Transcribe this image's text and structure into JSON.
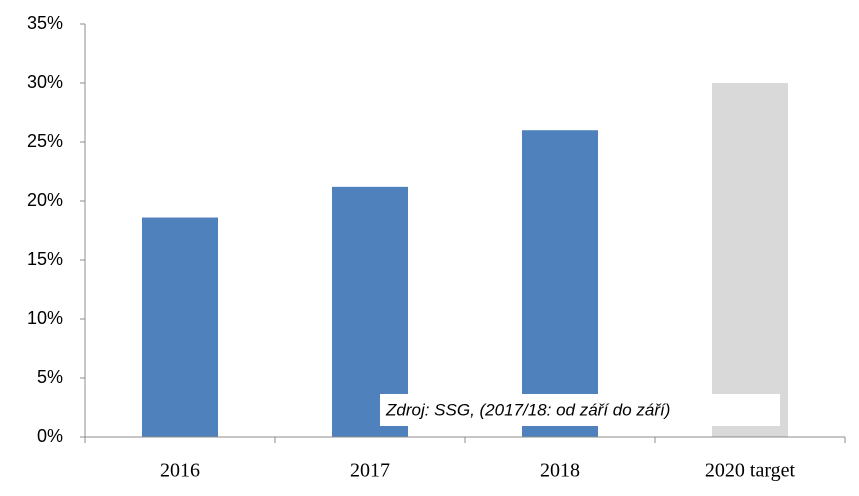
{
  "chart_data": {
    "type": "bar",
    "categories": [
      "2016",
      "2017",
      "2018",
      "2020 target"
    ],
    "values": [
      18.6,
      21.2,
      26.0,
      30
    ],
    "colors": [
      "#4f81bd",
      "#4f81bd",
      "#4f81bd",
      "#d9d9d9"
    ],
    "ylim": [
      0,
      35
    ],
    "yticks": [
      {
        "value": 0,
        "label": "0%"
      },
      {
        "value": 5,
        "label": "5%"
      },
      {
        "value": 10,
        "label": "10%"
      },
      {
        "value": 15,
        "label": "15%"
      },
      {
        "value": 20,
        "label": "20%"
      },
      {
        "value": 25,
        "label": "25%"
      },
      {
        "value": 30,
        "label": "30%"
      },
      {
        "value": 35,
        "label": "35%"
      }
    ],
    "grid": false,
    "annotation": "Zdroj: SSG, (2017/18: od září do září)"
  }
}
